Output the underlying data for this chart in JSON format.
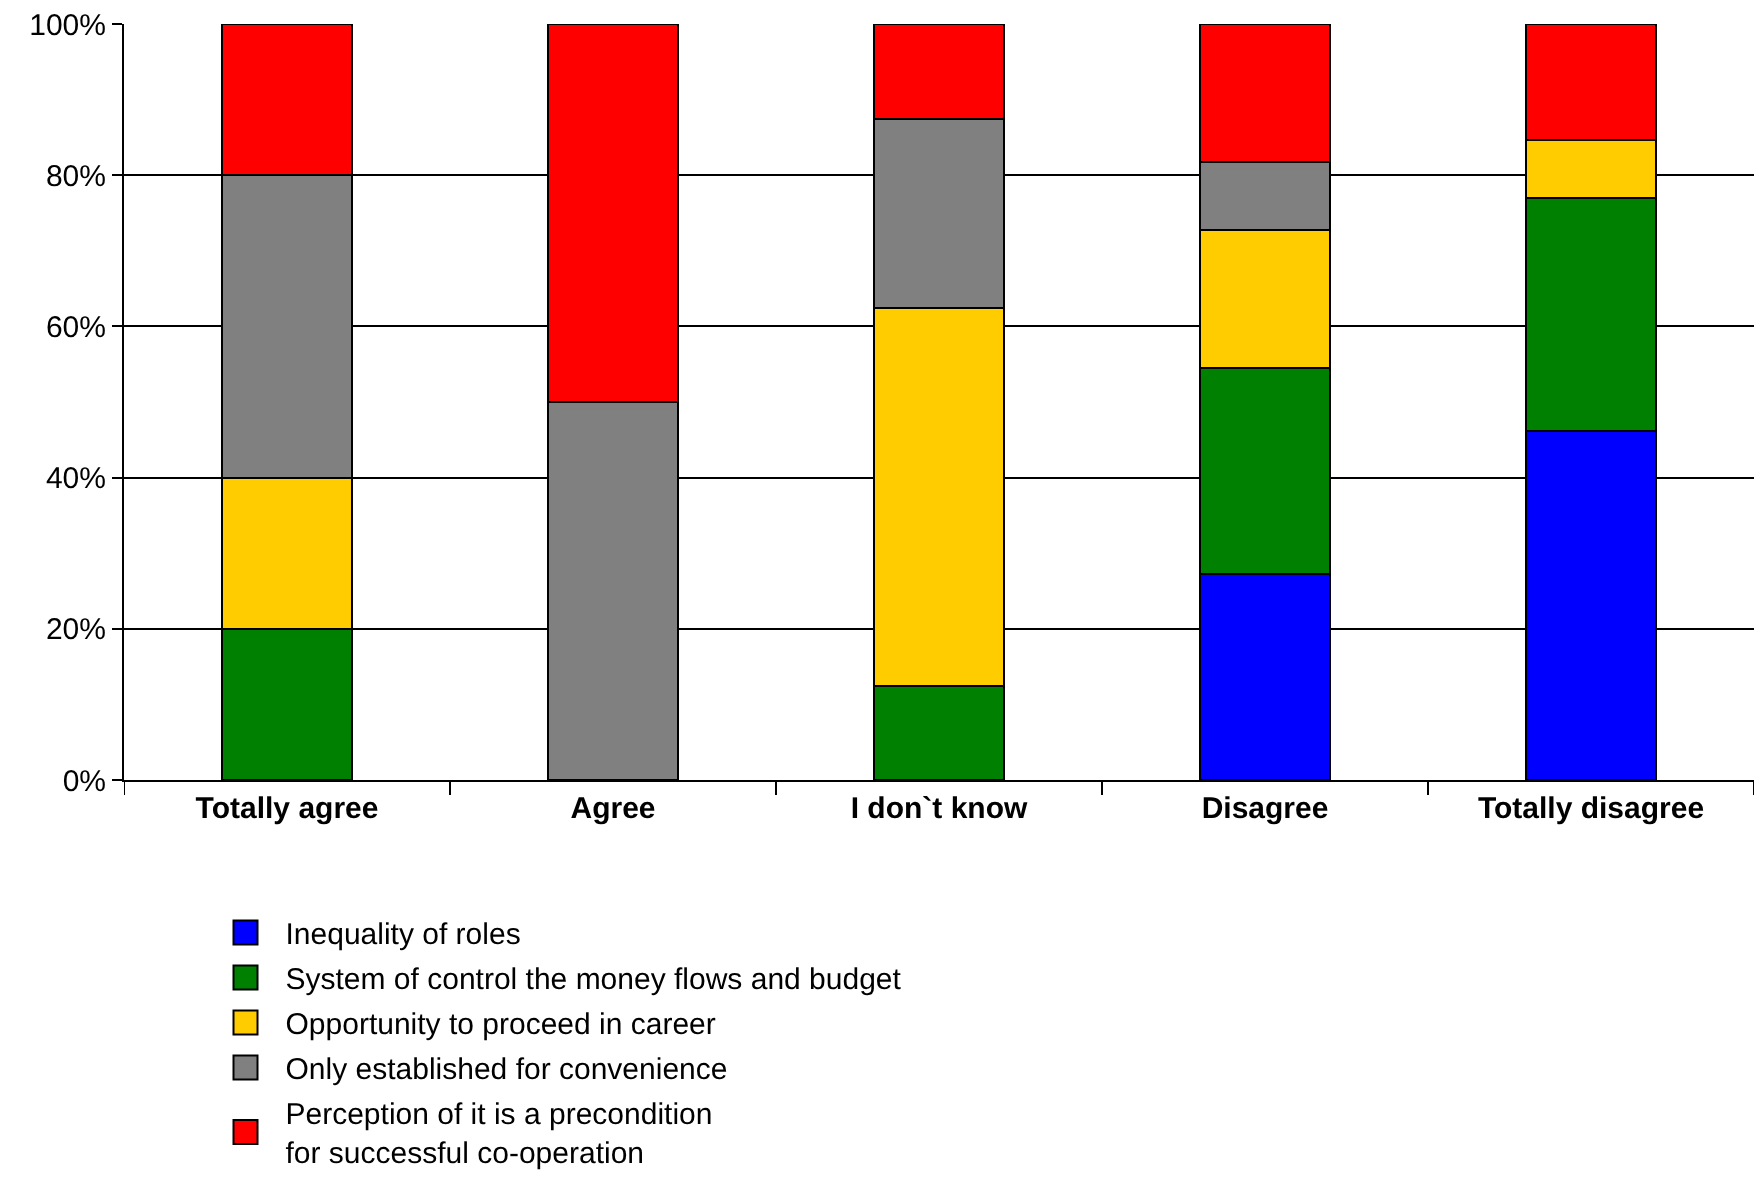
{
  "chart_data": {
    "type": "bar",
    "stacked": true,
    "categories": [
      "Totally agree",
      "Agree",
      "I don`t know",
      "Disagree",
      "Totally disagree"
    ],
    "series": [
      {
        "name": "Inequality of roles",
        "color": "#0000ff",
        "values": [
          0,
          0,
          0,
          27.3,
          46.2
        ]
      },
      {
        "name": "System of control the money flows and budget",
        "color": "#008000",
        "values": [
          20,
          0,
          12.5,
          27.2,
          30.8
        ]
      },
      {
        "name": "Opportunity to proceed in career",
        "color": "#ffcc00",
        "values": [
          20,
          0,
          50,
          18.2,
          7.6
        ]
      },
      {
        "name": "Only established for convenience",
        "color": "#808080",
        "values": [
          40,
          50,
          25,
          9.1,
          0
        ]
      },
      {
        "name": "Perception of it is a precondition\nfor successful co-operation",
        "color": "#ff0000",
        "values": [
          20,
          50,
          12.5,
          18.2,
          15.4
        ]
      }
    ],
    "ylim": [
      0,
      100
    ],
    "yticks": [
      {
        "value": 0,
        "label": "0%"
      },
      {
        "value": 20,
        "label": "20%"
      },
      {
        "value": 40,
        "label": "40%"
      },
      {
        "value": 60,
        "label": "60%"
      },
      {
        "value": 80,
        "label": "80%"
      },
      {
        "value": 100,
        "label": "100%"
      }
    ],
    "grid": "y",
    "legend": "bottom"
  }
}
